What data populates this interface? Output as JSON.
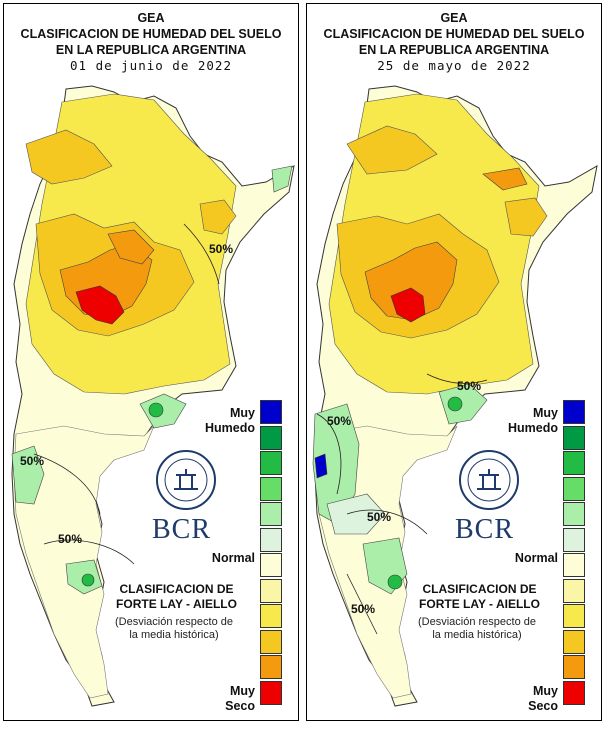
{
  "colors": {
    "legend": [
      "#0000cc",
      "#009944",
      "#22bb44",
      "#66dd66",
      "#aaeeaa",
      "#ddf3dd",
      "#fdfdd8",
      "#fbf5a8",
      "#f7e84c",
      "#f5c821",
      "#f39a0f",
      "#ee0000"
    ],
    "map_yellow": "#f7e84c",
    "map_orange": "#f5c821",
    "map_deep_orange": "#f39a0f",
    "map_red": "#ee0000",
    "map_pale": "#fdfdd8",
    "map_green_light": "#aaeeaa",
    "map_green": "#22bb44"
  },
  "left": {
    "title_line1": "GEA",
    "title_line2": "CLASIFICACION DE HUMEDAD DEL SUELO",
    "title_line3": "EN LA REPUBLICA ARGENTINA",
    "date": "01 de junio de 2022",
    "isolines": [
      "50%",
      "50%",
      "50%"
    ],
    "legend": {
      "top_label_1": "Muy",
      "top_label_2": "Humedo",
      "mid_label": "Normal",
      "bottom_label_1": "Muy",
      "bottom_label_2": "Seco"
    },
    "brand": "BCR",
    "logo_icon": "bcr-seal-icon",
    "classification_1": "CLASIFICACION DE",
    "classification_2": "FORTE LAY - AIELLO",
    "deviation_1": "(Desviación respecto de",
    "deviation_2": "la media histórica)"
  },
  "right": {
    "title_line1": "GEA",
    "title_line2": "CLASIFICACION DE HUMEDAD DEL SUELO",
    "title_line3": "EN LA REPUBLICA ARGENTINA",
    "date": "25 de mayo de 2022",
    "isolines": [
      "50%",
      "50%",
      "50%",
      "50%"
    ],
    "legend": {
      "top_label_1": "Muy",
      "top_label_2": "Humedo",
      "mid_label": "Normal",
      "bottom_label_1": "Muy",
      "bottom_label_2": "Seco"
    },
    "brand": "BCR",
    "logo_icon": "bcr-seal-icon",
    "classification_1": "CLASIFICACION DE",
    "classification_2": "FORTE LAY - AIELLO",
    "deviation_1": "(Desviación respecto de",
    "deviation_2": "la media histórica)"
  }
}
